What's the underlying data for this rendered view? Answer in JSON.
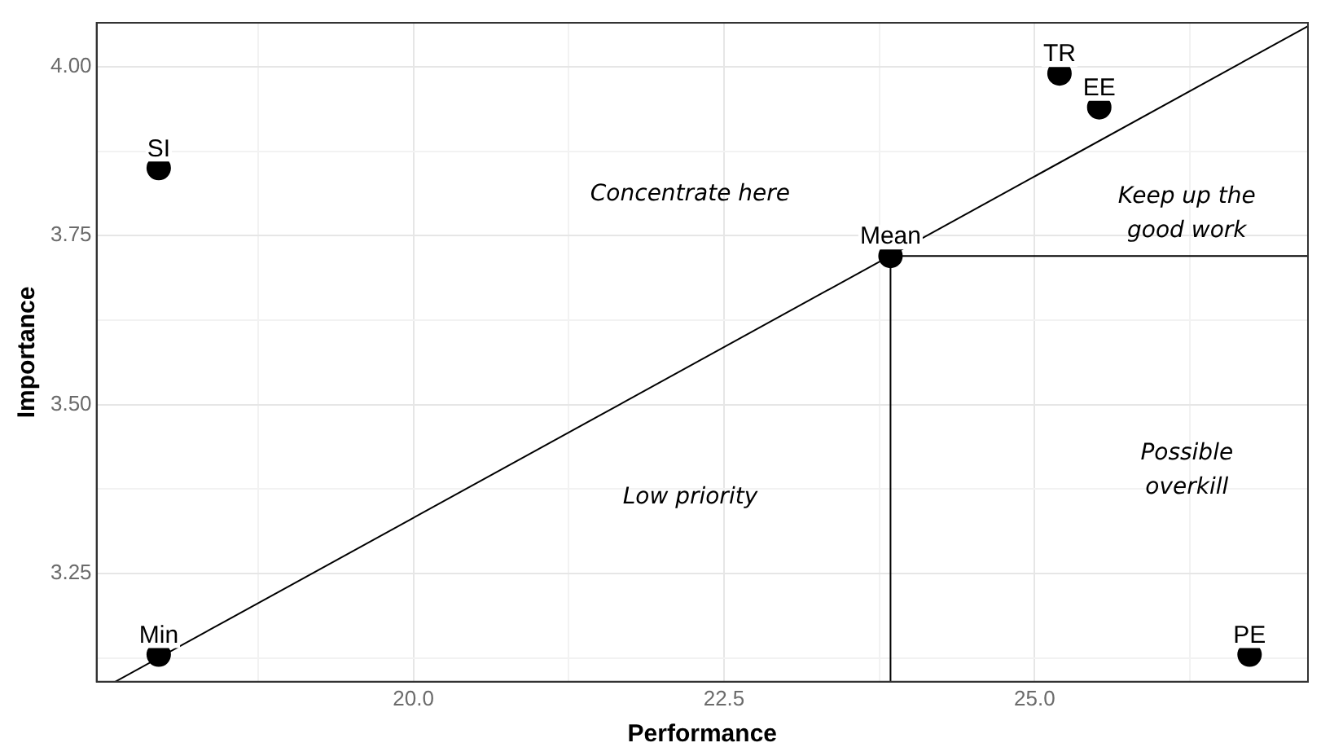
{
  "chart_data": {
    "type": "scatter",
    "xlabel": "Performance",
    "ylabel": "Importance",
    "xlim": [
      17.45,
      27.2
    ],
    "ylim": [
      3.09,
      4.065
    ],
    "xticks": [
      {
        "value": 18.75,
        "label": null
      },
      {
        "value": 20,
        "label": "20.0"
      },
      {
        "value": 21.25,
        "label": null
      },
      22.5,
      {
        "value": 23.75,
        "label": null
      },
      {
        "value": 25,
        "label": "25.0"
      },
      {
        "value": 26.25,
        "label": null
      }
    ],
    "yticks": [
      {
        "value": 3.125,
        "label": null
      },
      3.25,
      {
        "value": 3.375,
        "label": null
      },
      {
        "value": 3.5,
        "label": "3.50"
      },
      {
        "value": 3.625,
        "label": null
      },
      3.75,
      {
        "value": 3.875,
        "label": null
      },
      {
        "value": 4,
        "label": "4.00"
      }
    ],
    "grid": true,
    "legend": false,
    "marker": "circle",
    "series": [
      {
        "type": "scatter",
        "color": "#000000",
        "x": [
          17.95,
          17.95,
          23.84,
          25.2,
          25.52,
          26.73
        ],
        "values": [
          3.85,
          3.13,
          3.72,
          3.99,
          3.94,
          3.13
        ]
      },
      {
        "type": "line",
        "color": "#000000",
        "marker": "none",
        "x": [
          17.6,
          27.2
        ],
        "values": [
          3.09,
          4.06
        ]
      },
      {
        "type": "line",
        "color": "#000000",
        "marker": "none",
        "x": [
          23.84,
          23.84
        ],
        "values": [
          3.09,
          3.72
        ]
      },
      {
        "type": "line",
        "color": "#000000",
        "marker": "none",
        "x": [
          23.84,
          27.2
        ],
        "values": [
          3.72,
          3.72
        ]
      }
    ],
    "annotations": [
      {
        "text": "SI",
        "x": 17.95,
        "y": 3.85
      },
      {
        "text": "Min",
        "x": 17.95,
        "y": 3.13
      },
      {
        "text": "Mean",
        "x": 23.84,
        "y": 3.72
      },
      {
        "text": "TR",
        "x": 25.2,
        "y": 3.99
      },
      {
        "text": "EE",
        "x": 25.52,
        "y": 3.94
      },
      {
        "text": "PE",
        "x": 26.73,
        "y": 3.13
      },
      "Concentrate here",
      "Keep up the good work",
      "Low priority",
      "Possible overkill"
    ]
  }
}
